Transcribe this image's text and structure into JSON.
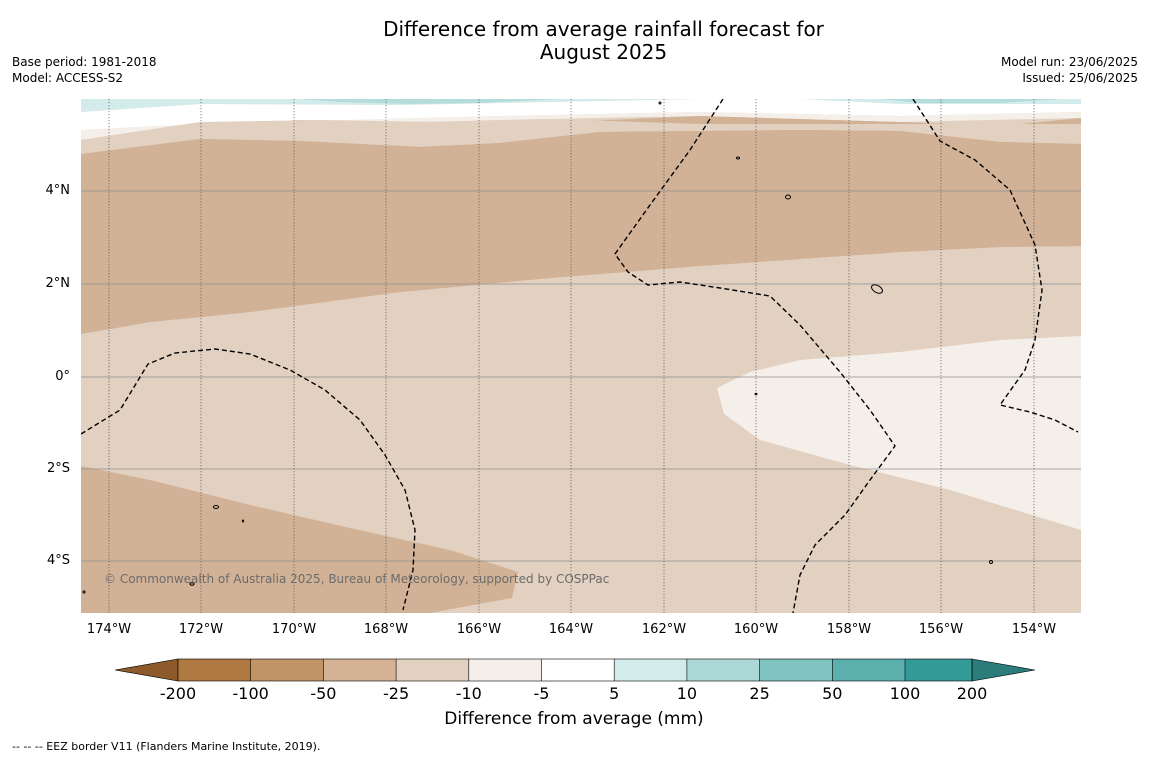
{
  "title_line1": "Difference from average rainfall forecast for",
  "title_line2": "August 2025",
  "base_period": "Base period: 1981-2018",
  "model": "Model: ACCESS-S2",
  "model_run": "Model run: 23/06/2025",
  "issued": "Issued: 25/06/2025",
  "copyright": "© Commonwealth of Australia 2025, Bureau of Meteorology, supported by COSPPac",
  "footnote": "--  --  -- EEZ border V11 (Flanders Marine Institute, 2019).",
  "lat_labels": [
    "4°N",
    "2°N",
    "0°",
    "2°S",
    "4°S"
  ],
  "lon_labels": [
    "174°W",
    "172°W",
    "170°W",
    "168°W",
    "166°W",
    "164°W",
    "162°W",
    "160°W",
    "158°W",
    "156°W",
    "154°W"
  ],
  "colorbar": {
    "title": "Difference from average (mm)",
    "tick_labels": [
      "-200",
      "-100",
      "-50",
      "-25",
      "-10",
      "-5",
      "5",
      "10",
      "25",
      "50",
      "100",
      "200"
    ],
    "colors": [
      "#8c5a2b",
      "#b07942",
      "#c29366",
      "#d5b293",
      "#e2d0c0",
      "#f5efea",
      "#ffffff",
      "#d3ebea",
      "#abd7d6",
      "#81c3c1",
      "#5bafad",
      "#339a98",
      "#2a7d7b"
    ]
  },
  "map": {
    "lon_range": [
      -174.6,
      -152.9
    ],
    "lat_range": [
      -5.2,
      5.8
    ],
    "colors": {
      "dark_brown": "#d1b296",
      "mid_brown": "#e2d0c0",
      "light": "#f5efea",
      "teal_light": "#d3ebea",
      "teal_mid": "#b3dcda",
      "grid": "#8f8f8f",
      "eez": "#000000"
    }
  }
}
